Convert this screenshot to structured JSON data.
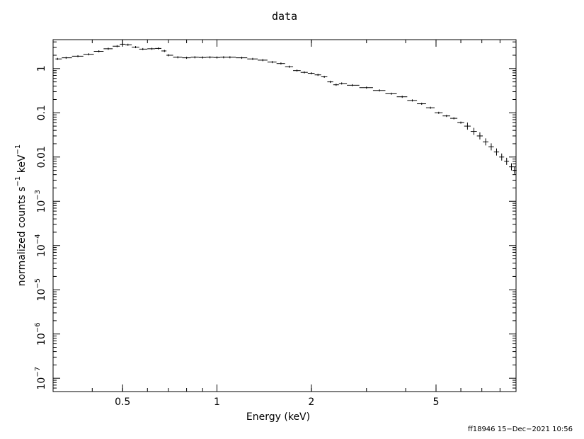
{
  "chart_data": {
    "type": "scatter",
    "title": "data",
    "xlabel": "Energy (keV)",
    "ylabel": {
      "base": "normalized counts s",
      "sup1": "−1",
      "mid": " keV",
      "sup2": "−1"
    },
    "x_scale": "log",
    "y_scale": "log",
    "xlim": [
      0.3,
      9.0
    ],
    "ylim": [
      5e-08,
      4.5
    ],
    "grid": false,
    "x_ticks": [
      {
        "value": 0.5,
        "label": "0.5"
      },
      {
        "value": 1,
        "label": "1"
      },
      {
        "value": 2,
        "label": "2"
      },
      {
        "value": 5,
        "label": "5"
      }
    ],
    "y_ticks": [
      {
        "value": 1,
        "label": "1",
        "exp": ""
      },
      {
        "value": 0.1,
        "label": "0.1",
        "exp": ""
      },
      {
        "value": 0.01,
        "label": "0.01",
        "exp": ""
      },
      {
        "value": 0.001,
        "label": "10",
        "exp": "−3"
      },
      {
        "value": 0.0001,
        "label": "10",
        "exp": "−4"
      },
      {
        "value": 1e-05,
        "label": "10",
        "exp": "−5"
      },
      {
        "value": 1e-06,
        "label": "10",
        "exp": "−6"
      },
      {
        "value": 1e-07,
        "label": "10",
        "exp": "−7"
      }
    ],
    "series": [
      {
        "points": [
          [
            0.31,
            1.65
          ],
          [
            0.33,
            1.75
          ],
          [
            0.36,
            1.9
          ],
          [
            0.39,
            2.1
          ],
          [
            0.42,
            2.45
          ],
          [
            0.45,
            2.8
          ],
          [
            0.48,
            3.2
          ],
          [
            0.5,
            3.55
          ],
          [
            0.52,
            3.45
          ],
          [
            0.55,
            3.05
          ],
          [
            0.58,
            2.75
          ],
          [
            0.62,
            2.8
          ],
          [
            0.65,
            2.85
          ],
          [
            0.68,
            2.5
          ],
          [
            0.7,
            2.0
          ],
          [
            0.75,
            1.8
          ],
          [
            0.8,
            1.75
          ],
          [
            0.85,
            1.8
          ],
          [
            0.9,
            1.78
          ],
          [
            0.95,
            1.8
          ],
          [
            1.0,
            1.78
          ],
          [
            1.05,
            1.8
          ],
          [
            1.1,
            1.8
          ],
          [
            1.2,
            1.75
          ],
          [
            1.3,
            1.65
          ],
          [
            1.4,
            1.55
          ],
          [
            1.5,
            1.4
          ],
          [
            1.6,
            1.3
          ],
          [
            1.7,
            1.1
          ],
          [
            1.8,
            0.9
          ],
          [
            1.9,
            0.82
          ],
          [
            2.0,
            0.78
          ],
          [
            2.1,
            0.72
          ],
          [
            2.2,
            0.65
          ],
          [
            2.3,
            0.5
          ],
          [
            2.4,
            0.43
          ],
          [
            2.5,
            0.46
          ],
          [
            2.7,
            0.42
          ],
          [
            3.0,
            0.37
          ],
          [
            3.3,
            0.32
          ],
          [
            3.6,
            0.27
          ],
          [
            3.9,
            0.23
          ],
          [
            4.2,
            0.19
          ],
          [
            4.5,
            0.16
          ],
          [
            4.8,
            0.13
          ],
          [
            5.1,
            0.1
          ],
          [
            5.4,
            0.085
          ],
          [
            5.7,
            0.075
          ],
          [
            6.0,
            0.06
          ],
          [
            6.3,
            0.05
          ],
          [
            6.6,
            0.038
          ],
          [
            6.9,
            0.03
          ],
          [
            7.2,
            0.022
          ],
          [
            7.5,
            0.017
          ],
          [
            7.8,
            0.013
          ],
          [
            8.1,
            0.01
          ],
          [
            8.4,
            0.008
          ],
          [
            8.7,
            0.006
          ],
          [
            8.9,
            0.005
          ]
        ]
      }
    ]
  },
  "footer": "ff18946 15−Dec−2021 10:56"
}
